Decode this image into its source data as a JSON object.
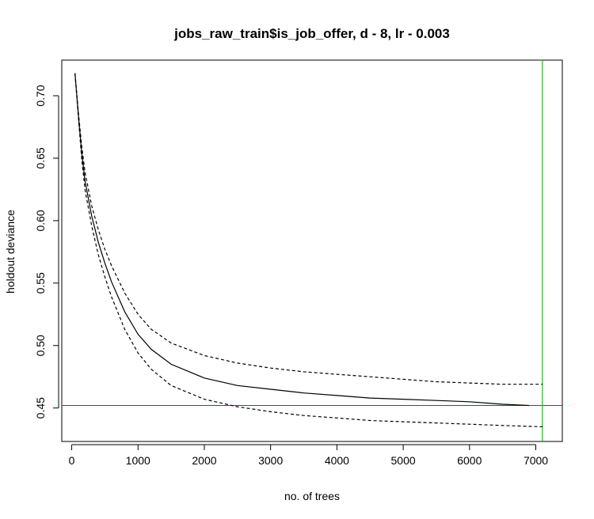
{
  "chart_data": {
    "type": "line",
    "title": "jobs_raw_train$is_job_offer, d - 8, lr - 0.003",
    "xlabel": "no. of trees",
    "ylabel": "holdout deviance",
    "xlim": [
      -150,
      7400
    ],
    "ylim": [
      0.4232,
      0.7285
    ],
    "x_ticks": [
      0,
      1000,
      2000,
      3000,
      4000,
      5000,
      6000,
      7000
    ],
    "x_tick_labels": [
      "0",
      "1000",
      "2000",
      "3000",
      "4000",
      "5000",
      "6000",
      "7000"
    ],
    "y_ticks": [
      0.45,
      0.5,
      0.55,
      0.6,
      0.65,
      0.7
    ],
    "y_tick_labels": [
      "0.45",
      "0.50",
      "0.55",
      "0.60",
      "0.65",
      "0.70"
    ],
    "grid": false,
    "legend": "none",
    "series": [
      {
        "style": "solid",
        "color": "#000000",
        "x": [
          50,
          100,
          150,
          200,
          300,
          400,
          500,
          600,
          800,
          1000,
          1200,
          1500,
          2000,
          2500,
          3000,
          3500,
          4000,
          4500,
          5000,
          5500,
          6000,
          6500,
          6900
        ],
        "y": [
          0.718,
          0.685,
          0.655,
          0.632,
          0.604,
          0.583,
          0.566,
          0.551,
          0.527,
          0.509,
          0.497,
          0.485,
          0.474,
          0.468,
          0.465,
          0.462,
          0.46,
          0.458,
          0.457,
          0.456,
          0.455,
          0.453,
          0.452
        ]
      },
      {
        "style": "dashed",
        "color": "#000000",
        "x": [
          50,
          100,
          150,
          200,
          300,
          400,
          500,
          600,
          800,
          1000,
          1200,
          1500,
          2000,
          2500,
          3000,
          3500,
          4000,
          4500,
          5000,
          5500,
          6000,
          6500,
          7100
        ],
        "y": [
          0.718,
          0.687,
          0.66,
          0.639,
          0.612,
          0.593,
          0.577,
          0.564,
          0.542,
          0.525,
          0.513,
          0.502,
          0.492,
          0.486,
          0.482,
          0.479,
          0.477,
          0.475,
          0.473,
          0.471,
          0.47,
          0.469,
          0.469
        ]
      },
      {
        "style": "dashed",
        "color": "#000000",
        "x": [
          50,
          100,
          150,
          200,
          300,
          400,
          500,
          600,
          800,
          1000,
          1200,
          1500,
          2000,
          2500,
          3000,
          3500,
          4000,
          4500,
          5000,
          5500,
          6000,
          6500,
          7100
        ],
        "y": [
          0.718,
          0.683,
          0.65,
          0.625,
          0.596,
          0.573,
          0.555,
          0.539,
          0.513,
          0.494,
          0.481,
          0.468,
          0.457,
          0.451,
          0.447,
          0.444,
          0.442,
          0.44,
          0.439,
          0.438,
          0.437,
          0.436,
          0.435
        ]
      }
    ],
    "reference_lines": [
      {
        "orientation": "horizontal",
        "value": 0.452,
        "color": "#ff0000"
      },
      {
        "orientation": "vertical",
        "value": 7100,
        "color": "#00cc00"
      }
    ]
  }
}
